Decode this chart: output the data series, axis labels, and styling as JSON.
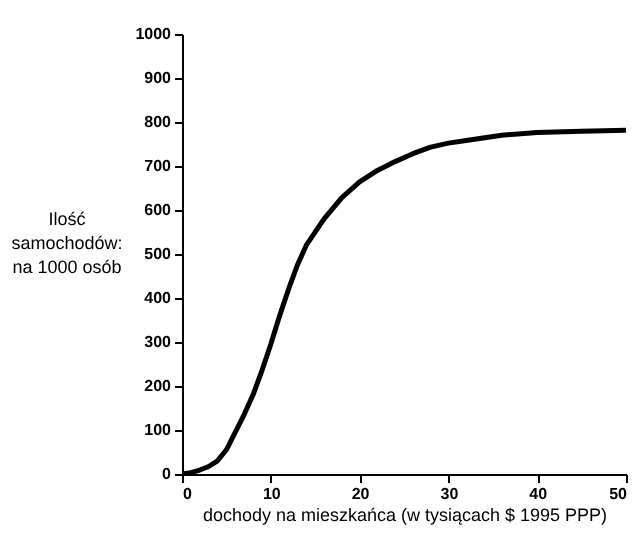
{
  "chart_data": {
    "type": "line",
    "xlabel": "dochody na mieszkańca (w tysiącach $ 1995 PPP)",
    "ylabel": "Ilość\nsamochodów:\n\nna 1000 osób",
    "x": [
      0,
      1,
      2,
      3,
      4,
      5,
      6,
      7,
      8,
      9,
      10,
      11,
      12,
      13,
      14,
      16,
      18,
      20,
      22,
      24,
      26,
      28,
      30,
      32,
      36,
      40,
      45,
      50
    ],
    "series": [
      {
        "color": "#000000",
        "values": [
          0,
          3,
          9,
          17,
          30,
          55,
          95,
          135,
          180,
          235,
          295,
          360,
          420,
          475,
          520,
          580,
          628,
          664,
          690,
          710,
          728,
          743,
          752,
          758,
          770,
          776,
          779,
          781
        ]
      }
    ],
    "xlim": [
      0,
      50
    ],
    "xticks": [
      0,
      10,
      20,
      30,
      40,
      50
    ],
    "ylim": [
      0,
      1000
    ],
    "yticks": [
      0,
      100,
      200,
      300,
      400,
      500,
      600,
      700,
      800,
      900,
      1000
    ],
    "grid": false,
    "marker": "none",
    "line_style": "solid"
  }
}
